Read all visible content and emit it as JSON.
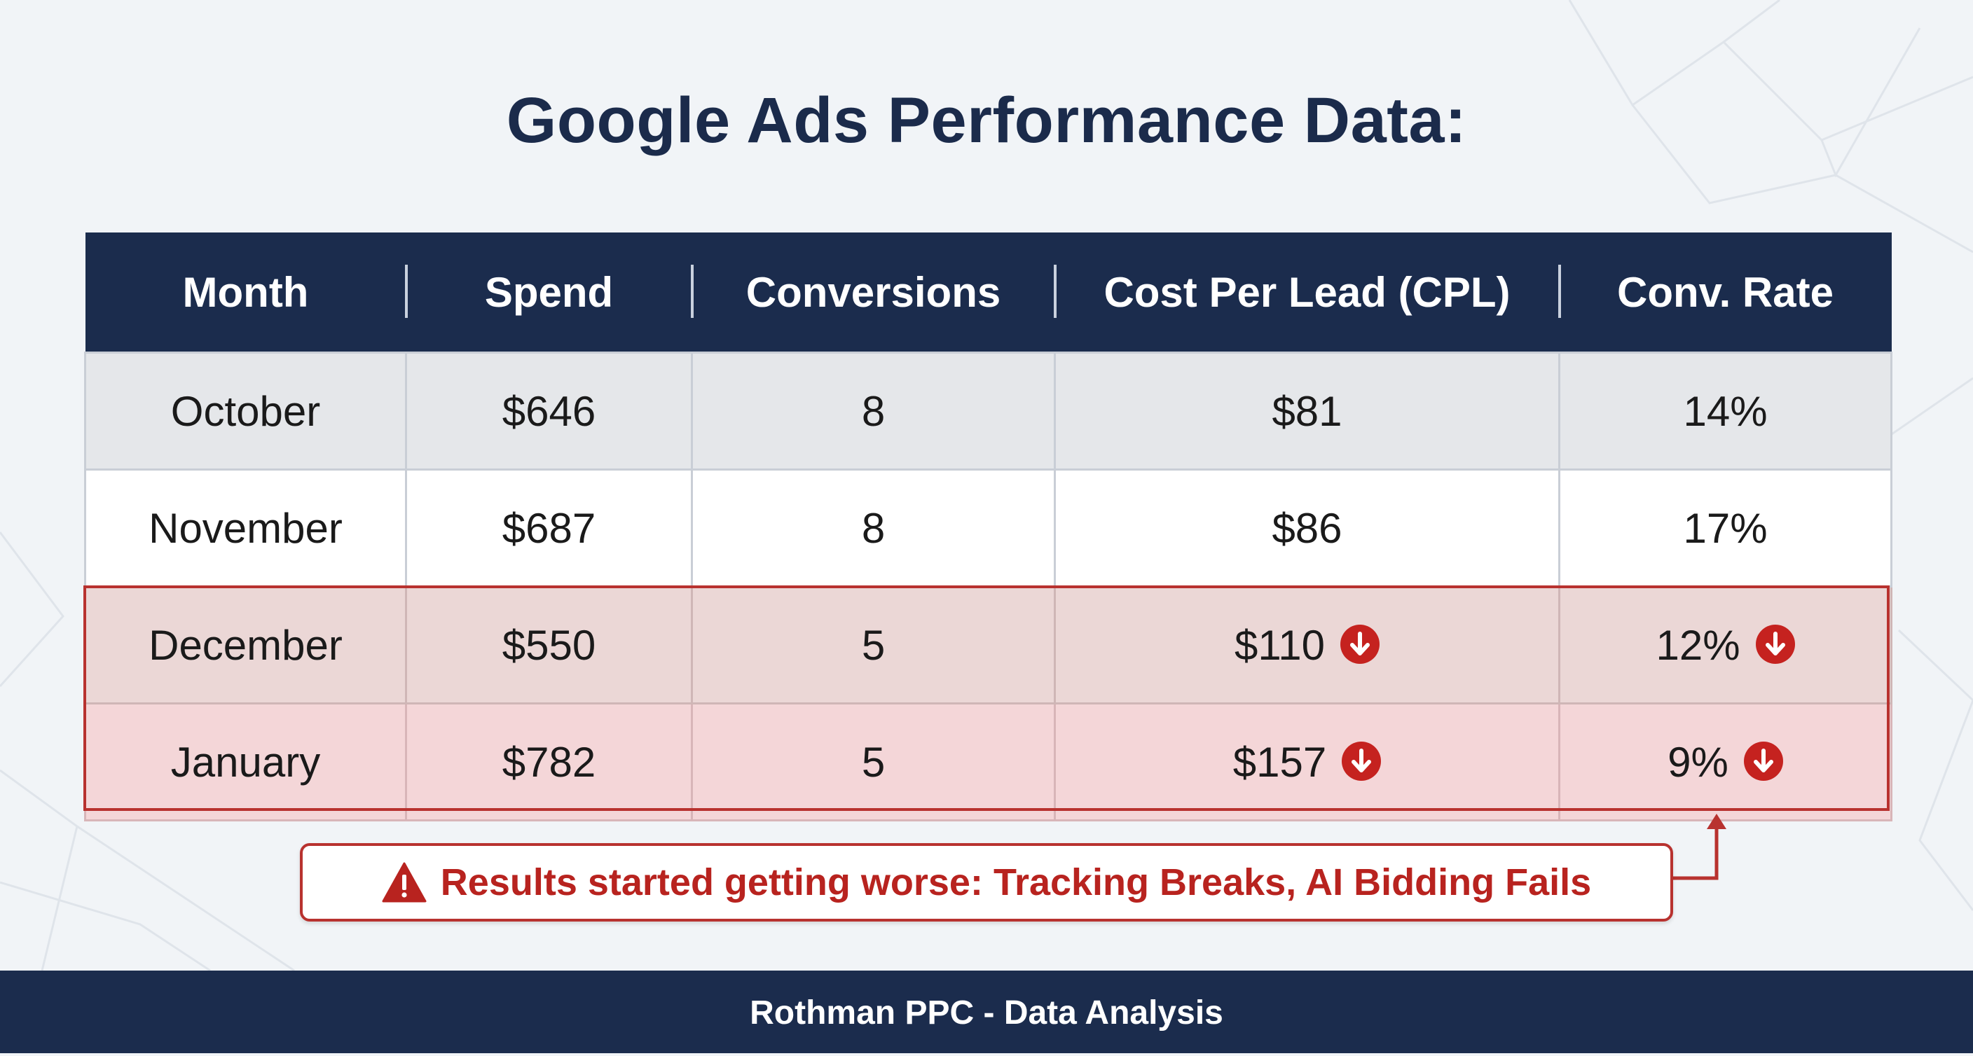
{
  "title": "Google Ads Performance Data:",
  "chart_data": {
    "type": "table",
    "columns": [
      "Month",
      "Spend",
      "Conversions",
      "Cost Per Lead (CPL)",
      "Conv. Rate"
    ],
    "rows": [
      {
        "month": "October",
        "spend": "$646",
        "conversions": "8",
        "cpl": "$81",
        "conv_rate": "14%",
        "decline": false
      },
      {
        "month": "November",
        "spend": "$687",
        "conversions": "8",
        "cpl": "$86",
        "conv_rate": "17%",
        "decline": false
      },
      {
        "month": "December",
        "spend": "$550",
        "conversions": "5",
        "cpl": "$110",
        "conv_rate": "12%",
        "decline": true
      },
      {
        "month": "January",
        "spend": "$782",
        "conversions": "5",
        "cpl": "$157",
        "conv_rate": "9%",
        "decline": true
      }
    ]
  },
  "callout": {
    "text": "Results started getting worse: Tracking Breaks, AI Bidding Fails",
    "icon": "warning-icon"
  },
  "icons": {
    "decline": "arrow-down-circle-icon"
  },
  "footer": "Rothman PPC - Data Analysis",
  "colors": {
    "navy": "#1b2c4d",
    "alert_red": "#c5221f",
    "row_gray": "#e5e7ea",
    "row_decline_1": "#ebd7d6",
    "row_decline_2": "#f4d6d8"
  }
}
